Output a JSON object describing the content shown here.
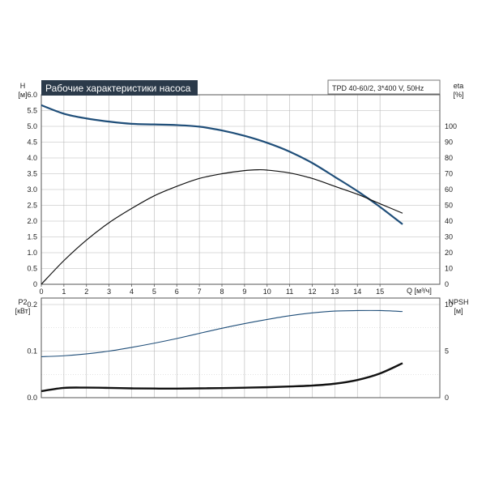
{
  "colors": {
    "curve_blue": "#1f4e79",
    "curve_black": "#111111",
    "grid": "#b8b8b8",
    "frame": "#555555",
    "title_bg": "#2b3a4a",
    "title_text": "#ffffff"
  },
  "chart_data": [
    {
      "type": "line",
      "title": "Рабочие характеристики насоса",
      "subtitle": "TPD 40-60/2, 3*400 V, 50Hz",
      "xlabel": "Q [м³/ч]",
      "ylabel_top": "H",
      "ylabel_unit": "[м]",
      "y2label_top": "eta",
      "y2label_unit": "[%]",
      "xlim": [
        0,
        16
      ],
      "ylim": [
        0,
        6.0
      ],
      "y2lim": [
        0,
        120
      ],
      "x_ticks": [
        0,
        1,
        2,
        3,
        4,
        5,
        6,
        7,
        8,
        9,
        10,
        11,
        12,
        13,
        14,
        15
      ],
      "y_ticks": [
        0,
        0.5,
        1.0,
        1.5,
        2.0,
        2.5,
        3.0,
        3.5,
        4.0,
        4.5,
        5.0,
        5.5,
        6.0
      ],
      "y_tick_labels": [
        "0",
        "0.5",
        "1.0",
        "1.5",
        "2.0",
        "2.5",
        "3.0",
        "3.5",
        "4.0",
        "4.5",
        "5.0",
        "5.5",
        "6.0"
      ],
      "y2_ticks": [
        0,
        10,
        20,
        30,
        40,
        50,
        60,
        70,
        80,
        90,
        100
      ],
      "grid": true,
      "series": [
        {
          "axis": "left",
          "x": [
            0,
            1,
            2,
            3,
            4,
            5,
            6,
            7,
            8,
            9,
            10,
            11,
            12,
            13,
            14,
            15,
            16
          ],
          "values": [
            5.67,
            5.4,
            5.25,
            5.15,
            5.08,
            5.06,
            5.04,
            4.99,
            4.87,
            4.7,
            4.48,
            4.2,
            3.84,
            3.4,
            2.95,
            2.45,
            1.9
          ]
        },
        {
          "axis": "right",
          "x": [
            0,
            1,
            2,
            3,
            4,
            5,
            6,
            7,
            8,
            9,
            9.6,
            10,
            11,
            12,
            13,
            14,
            15,
            16
          ],
          "values": [
            0,
            15,
            28,
            39,
            48,
            56,
            62,
            67,
            70,
            72,
            72.5,
            72.3,
            70.5,
            67,
            62,
            57,
            51,
            45
          ]
        }
      ]
    },
    {
      "type": "line",
      "ylabel_top": "P2",
      "ylabel_unit": "[кВт]",
      "y2label_top": "NPSH",
      "y2label_unit": "[м]",
      "xlim": [
        0,
        16
      ],
      "ylim": [
        0,
        0.2
      ],
      "y2lim": [
        0,
        10
      ],
      "y_ticks": [
        0,
        0.1,
        0.2
      ],
      "y_tick_labels": [
        "0.0",
        "0.1",
        "0.2"
      ],
      "y2_ticks": [
        0,
        5,
        10
      ],
      "grid": true,
      "series": [
        {
          "axis": "left",
          "x": [
            0,
            1,
            2,
            3,
            4,
            5,
            6,
            7,
            8,
            9,
            10,
            11,
            12,
            13,
            14,
            15,
            16
          ],
          "values": [
            0.088,
            0.09,
            0.094,
            0.1,
            0.108,
            0.117,
            0.127,
            0.138,
            0.149,
            0.159,
            0.168,
            0.176,
            0.182,
            0.186,
            0.187,
            0.187,
            0.185
          ]
        },
        {
          "axis": "right",
          "x": [
            0,
            1,
            2,
            3,
            4,
            5,
            6,
            7,
            8,
            9,
            10,
            11,
            12,
            13,
            14,
            15,
            16
          ],
          "values": [
            0.7,
            1.05,
            1.08,
            1.05,
            1.0,
            0.98,
            0.97,
            1.0,
            1.03,
            1.07,
            1.12,
            1.2,
            1.3,
            1.5,
            1.9,
            2.6,
            3.7
          ]
        }
      ]
    }
  ]
}
